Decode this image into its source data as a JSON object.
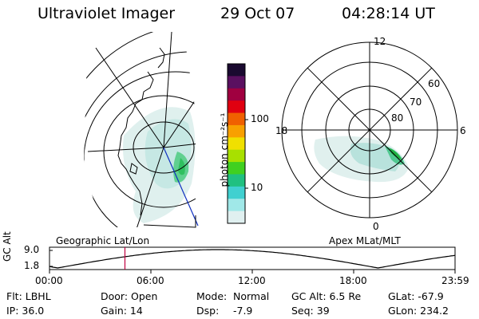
{
  "header": {
    "instrument": "Ultraviolet Imager",
    "date": "29 Oct 07",
    "time": "04:28:14 UT"
  },
  "colorbar": {
    "unit_label": "photon cm⁻²s⁻¹",
    "ticks": [
      "100",
      "10"
    ],
    "colors": [
      "#1a0a30",
      "#5a1060",
      "#a00040",
      "#e00010",
      "#f06000",
      "#f8a000",
      "#f0e000",
      "#a8e000",
      "#40d020",
      "#20c080",
      "#40d0d0",
      "#a0e8e8",
      "#e0f0f0"
    ]
  },
  "left_map": {
    "projection_label": "Geographic Lat/Lon"
  },
  "right_map": {
    "projection_label": "Apex MLat/MLT",
    "mlt_labels": [
      "12",
      "18",
      "6",
      "0"
    ],
    "mlat_labels": [
      "60",
      "70",
      "80"
    ]
  },
  "altitude_plot": {
    "ylabel": "GC Alt",
    "ytick_top": "9.0",
    "ytick_bottom": "1.8",
    "xticks": [
      "00:00",
      "06:00",
      "12:00",
      "18:00",
      "23:59"
    ],
    "current_time_fraction": 0.186
  },
  "info": {
    "flt": "Flt: LBHL",
    "ip": "IP: 36.0",
    "door": "Door: Open",
    "gain": "Gain: 14",
    "mode_label": "Mode:",
    "mode_value": "Normal",
    "dsp_label": "Dsp:",
    "dsp_value": "-7.9",
    "gc_alt": "GC Alt: 6.5 Re",
    "seq": "Seq: 39",
    "glat": "GLat: -67.9",
    "glon": "GLon: 234.2"
  }
}
